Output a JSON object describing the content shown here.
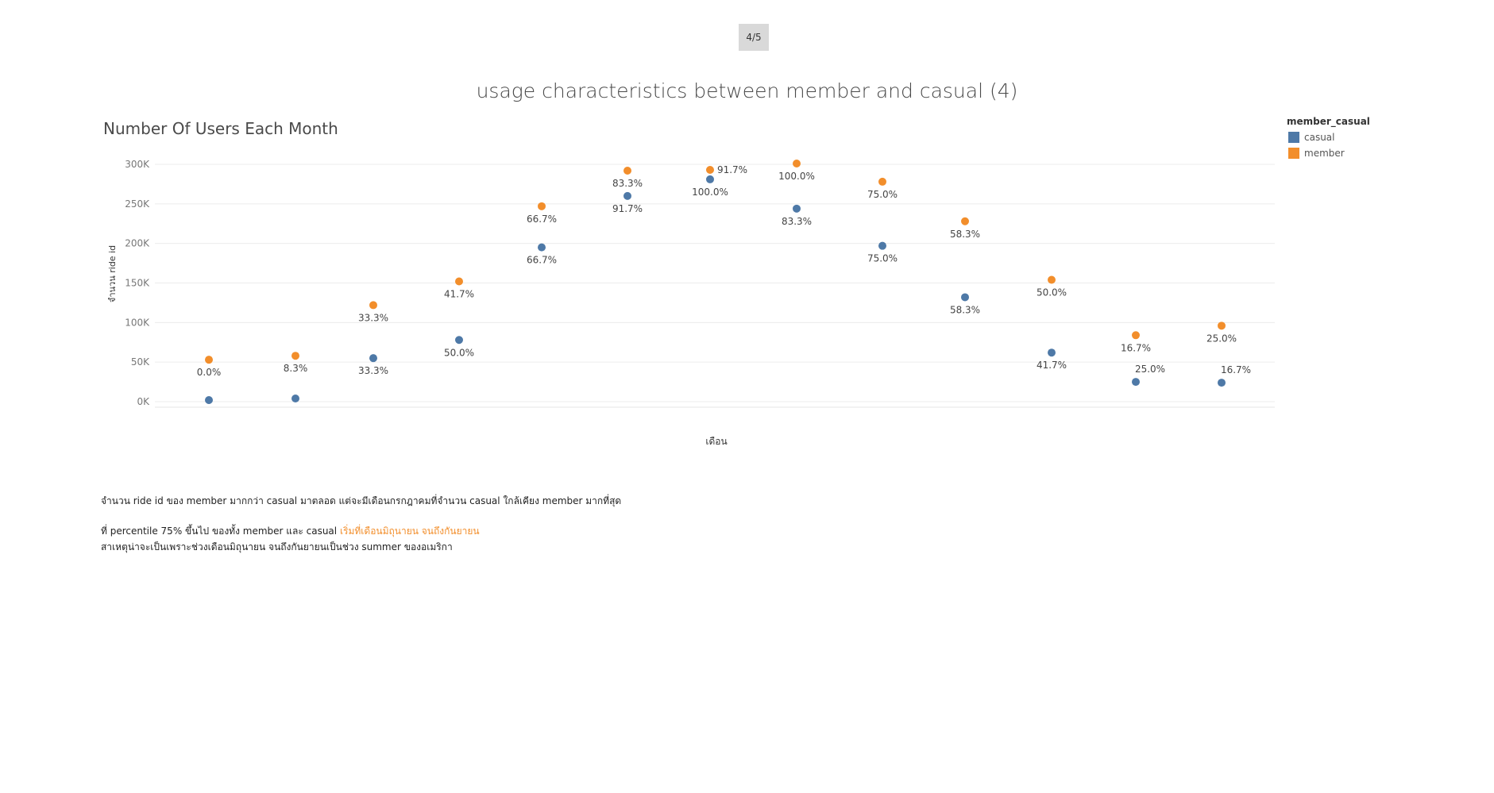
{
  "page_indicator": "4/5",
  "main_title": "usage characteristics between member and casual (4)",
  "legend": {
    "title": "member_casual",
    "items": [
      {
        "label": "casual",
        "color": "#4e79a7"
      },
      {
        "label": "member",
        "color": "#f28e2b"
      }
    ]
  },
  "notes": {
    "line1": "จำนวน ride id ของ member มากกว่า casual มาตลอด แต่จะมีเดือนกรกฎาคมที่จำนวน casual ใกล้เคียง member มากที่สุด",
    "line2_prefix": "ที่ percentile 75% ขึ้นไป ของทั้ง member และ casual ",
    "line2_highlight": "เริ่มที่เดือนมิถุนายน จนถึงกันยายน",
    "line3": "สาเหตุน่าจะเป็นเพราะช่วงเดือนมิถุนายน จนถึงกันยายนเป็นช่วง summer ของอเมริกา",
    "highlight_color": "#f28e2b"
  },
  "chart_data": {
    "type": "scatter",
    "title": "Number Of Users Each Month",
    "xlabel": "เดือน",
    "ylabel": "จำนวน ride id",
    "ylim": [
      0,
      300000
    ],
    "yticks": [
      0,
      50000,
      100000,
      150000,
      200000,
      250000,
      300000
    ],
    "ytick_labels": [
      "0K",
      "50K",
      "100K",
      "150K",
      "200K",
      "250K",
      "300K"
    ],
    "x": [
      1,
      2,
      3,
      4,
      5,
      6,
      7,
      8,
      9,
      10,
      11,
      12
    ],
    "grid": true,
    "legend_position": "top-right",
    "series": [
      {
        "name": "casual",
        "color": "#4e79a7",
        "values": [
          2000,
          4000,
          55000,
          78000,
          195000,
          260000,
          281000,
          244000,
          197000,
          132000,
          62000,
          25000
        ],
        "labels": [
          "",
          "",
          "33.3%",
          "50.0%",
          "66.7%",
          "91.7%",
          "100.0%",
          "83.3%",
          "75.0%",
          "58.3%",
          "41.7%",
          "25.0%"
        ]
      },
      {
        "name": "member",
        "color": "#f28e2b",
        "values": [
          53000,
          58000,
          122000,
          152000,
          247000,
          292000,
          293000,
          301000,
          278000,
          228000,
          154000,
          84000
        ],
        "labels": [
          "0.0%",
          "8.3%",
          "33.3%",
          "41.7%",
          "66.7%",
          "83.3%",
          "91.7%",
          "100.0%",
          "75.0%",
          "58.3%",
          "50.0%",
          "16.7%"
        ]
      }
    ],
    "extra_points": [
      {
        "series": "member",
        "x": 13,
        "value": 96000,
        "label": "25.0%"
      },
      {
        "series": "casual",
        "x": 13,
        "value": 24000,
        "label": "16.7%"
      }
    ]
  }
}
